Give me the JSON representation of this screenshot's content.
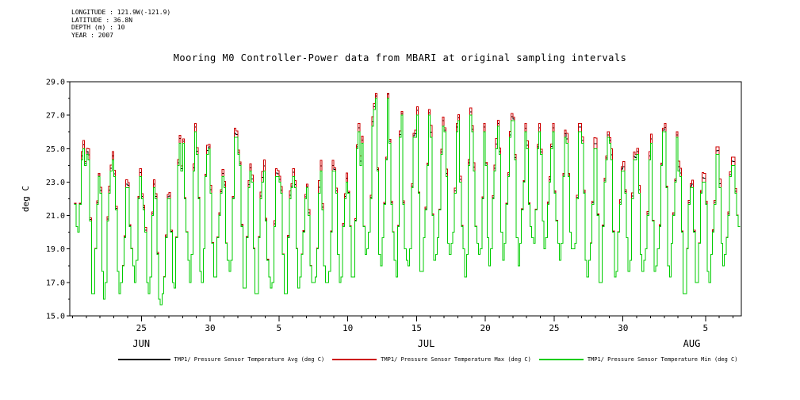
{
  "metadata": {
    "lines": [
      "LONGITUDE : 121.9W(-121.9)",
      "LATITUDE : 36.8N",
      "DEPTH (m) : 10",
      "YEAR : 2007"
    ]
  },
  "chart_data": {
    "type": "line",
    "title": "Mooring M0 Controller-Power data from MBARI at original sampling intervals",
    "ylabel": "deg C",
    "xlabel": "",
    "ylim": [
      15.0,
      29.0
    ],
    "y_ticks": [
      29.0,
      27.0,
      25.0,
      23.0,
      21.0,
      19.0,
      17.0,
      15.0
    ],
    "grid": false,
    "legend_position": "bottom",
    "x_domain_days": [
      -0.2,
      48.6
    ],
    "x_major_ticks": [
      {
        "day": 5,
        "label": "25"
      },
      {
        "day": 10,
        "label": "30"
      },
      {
        "day": 15,
        "label": "5"
      },
      {
        "day": 20,
        "label": "10"
      },
      {
        "day": 25,
        "label": "15"
      },
      {
        "day": 30,
        "label": "20"
      },
      {
        "day": 35,
        "label": "25"
      },
      {
        "day": 40,
        "label": "30"
      },
      {
        "day": 46,
        "label": "5"
      }
    ],
    "month_labels": [
      {
        "day": 5.0,
        "label": "JUN"
      },
      {
        "day": 25.7,
        "label": "JUL"
      },
      {
        "day": 45.0,
        "label": "AUG"
      }
    ],
    "series": [
      {
        "name": "TMP1/ Pressure Sensor Temperature Avg (deg C)",
        "color": "#000000",
        "role": "avg"
      },
      {
        "name": "TMP1/ Pressure Sensor Temperature Max (deg C)",
        "color": "#cc0000",
        "role": "max"
      },
      {
        "name": "TMP1/ Pressure Sensor Temperature Min (deg C)",
        "color": "#00cc00",
        "role": "min"
      }
    ],
    "daily_envelope": {
      "start_date": "2007-06-20",
      "dates": [
        "Jun 20",
        "Jun 21",
        "Jun 22",
        "Jun 23",
        "Jun 24",
        "Jun 25",
        "Jun 26",
        "Jun 27",
        "Jun 28",
        "Jun 29",
        "Jun 30",
        "Jul 1",
        "Jul 2",
        "Jul 3",
        "Jul 4",
        "Jul 5",
        "Jul 6",
        "Jul 7",
        "Jul 8",
        "Jul 9",
        "Jul 10",
        "Jul 11",
        "Jul 12",
        "Jul 13",
        "Jul 14",
        "Jul 15",
        "Jul 16",
        "Jul 17",
        "Jul 18",
        "Jul 19",
        "Jul 20",
        "Jul 21",
        "Jul 22",
        "Jul 23",
        "Jul 24",
        "Jul 25",
        "Jul 26",
        "Jul 27",
        "Jul 28",
        "Jul 29",
        "Jul 30",
        "Jul 31",
        "Aug 1",
        "Aug 2",
        "Aug 3",
        "Aug 4",
        "Aug 5",
        "Aug 6",
        "Aug 7"
      ],
      "min": [
        20.0,
        16.2,
        16.0,
        16.1,
        17.0,
        16.2,
        15.0,
        16.8,
        16.9,
        17.0,
        17.2,
        16.8,
        16.6,
        16.2,
        16.1,
        16.3,
        16.8,
        16.2,
        16.1,
        16.9,
        17.2,
        17.8,
        17.6,
        17.2,
        17.0,
        17.3,
        17.8,
        17.9,
        17.2,
        17.9,
        18.0,
        18.2,
        18.0,
        18.8,
        18.9,
        18.2,
        17.9,
        17.0,
        17.1,
        17.2,
        17.8,
        17.2,
        17.0,
        17.3,
        16.4,
        16.9,
        17.0,
        17.8,
        19.8
      ],
      "max": [
        25.0,
        25.2,
        24.8,
        23.2,
        23.3,
        23.0,
        22.0,
        25.3,
        26.0,
        26.0,
        23.4,
        25.8,
        25.3,
        24.3,
        23.3,
        23.8,
        23.3,
        22.6,
        23.8,
        24.0,
        26.0,
        27.2,
        28.0,
        27.0,
        25.6,
        27.0,
        26.4,
        26.0,
        27.0,
        26.0,
        26.2,
        26.6,
        26.8,
        26.0,
        26.0,
        25.6,
        26.0,
        25.2,
        26.0,
        25.4,
        25.0,
        24.6,
        26.0,
        26.0,
        24.2,
        24.0,
        24.6,
        24.0,
        24.0
      ],
      "avg": [
        22.5,
        20.7,
        20.4,
        19.7,
        20.2,
        19.6,
        18.5,
        21.1,
        21.5,
        21.5,
        20.3,
        21.3,
        21.0,
        20.3,
        19.7,
        20.1,
        20.1,
        19.4,
        20.0,
        20.5,
        21.6,
        22.5,
        22.8,
        22.1,
        21.3,
        22.2,
        22.1,
        22.0,
        22.1,
        22.0,
        22.1,
        22.4,
        22.4,
        22.4,
        22.5,
        21.9,
        22.0,
        21.1,
        21.6,
        21.3,
        21.4,
        20.9,
        21.5,
        21.7,
        20.3,
        20.5,
        20.8,
        20.9,
        21.9
      ]
    }
  }
}
